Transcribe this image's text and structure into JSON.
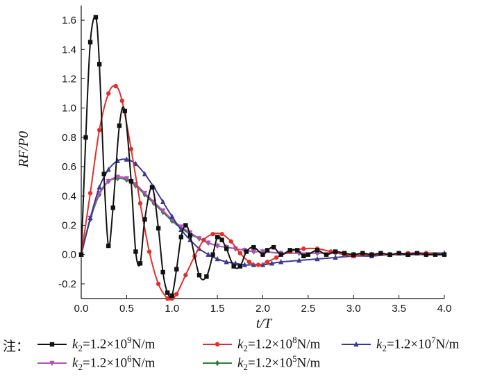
{
  "chart_data": {
    "type": "line",
    "xlabel": "t/T",
    "ylabel": "RF/P0",
    "xlim": [
      0,
      4.0
    ],
    "ylim": [
      -0.3,
      1.7
    ],
    "x_ticks": [
      "0.0",
      "0.5",
      "1.0",
      "1.5",
      "2.0",
      "2.5",
      "3.0",
      "3.5",
      "4.0"
    ],
    "y_ticks": [
      "-0.2",
      "0.0",
      "0.2",
      "0.4",
      "0.6",
      "0.8",
      "1.0",
      "1.2",
      "1.4",
      "1.6"
    ],
    "legend_note": "注：",
    "legend_placement": "bottom",
    "series": [
      {
        "name": "k2=1.2×10⁹N/m",
        "label_parts": {
          "k": "k",
          "sub": "2",
          "pre": "=1.2×10",
          "sup": "9",
          "post": "N/m"
        },
        "color": "#111111",
        "marker": "square",
        "x": [
          0,
          0.05,
          0.1,
          0.16,
          0.2,
          0.25,
          0.3,
          0.35,
          0.42,
          0.48,
          0.55,
          0.6,
          0.65,
          0.7,
          0.78,
          0.85,
          0.9,
          0.95,
          1.0,
          1.05,
          1.1,
          1.15,
          1.2,
          1.3,
          1.38,
          1.45,
          1.5,
          1.55,
          1.6,
          1.68,
          1.75,
          1.82,
          1.9,
          2.0,
          2.05,
          2.12,
          2.2,
          2.3,
          2.38,
          2.45,
          2.5,
          2.6,
          2.7,
          2.8,
          2.9,
          3.0,
          3.1,
          3.2,
          3.3,
          3.4,
          3.5,
          3.6,
          3.7,
          3.8,
          3.9,
          4.0
        ],
        "y": [
          0.0,
          0.8,
          1.45,
          1.62,
          1.3,
          0.55,
          0.06,
          0.32,
          0.88,
          0.98,
          0.5,
          0.02,
          -0.06,
          0.24,
          0.46,
          0.18,
          -0.12,
          -0.26,
          -0.28,
          -0.1,
          0.12,
          0.2,
          0.13,
          -0.14,
          -0.15,
          0.0,
          0.12,
          0.1,
          0.04,
          -0.08,
          -0.08,
          0.02,
          0.05,
          0.0,
          0.03,
          0.05,
          0.0,
          0.03,
          0.03,
          -0.01,
          0.0,
          0.03,
          0.0,
          0.02,
          0.01,
          0.0,
          0.01,
          0.0,
          0.01,
          0.0,
          0.01,
          0.0,
          0.01,
          0.0,
          0.0,
          0.0
        ]
      },
      {
        "name": "k2=1.2×10⁸N/m",
        "label_parts": {
          "k": "k",
          "sub": "2",
          "pre": "=1.2×10",
          "sup": "8",
          "post": "N/m"
        },
        "color": "#e0302b",
        "marker": "circle",
        "x": [
          0,
          0.1,
          0.2,
          0.3,
          0.38,
          0.45,
          0.55,
          0.65,
          0.75,
          0.85,
          0.95,
          1.0,
          1.05,
          1.15,
          1.25,
          1.35,
          1.45,
          1.55,
          1.65,
          1.75,
          1.85,
          1.95,
          2.05,
          2.15,
          2.3,
          2.45,
          2.6,
          2.75,
          2.9,
          3.0,
          3.2,
          3.4,
          3.6,
          3.8,
          4.0
        ],
        "y": [
          0.0,
          0.42,
          0.85,
          1.1,
          1.15,
          1.05,
          0.72,
          0.35,
          0.02,
          -0.2,
          -0.3,
          -0.3,
          -0.27,
          -0.14,
          -0.01,
          0.1,
          0.14,
          0.14,
          0.09,
          0.01,
          -0.05,
          -0.07,
          -0.05,
          -0.02,
          0.02,
          0.04,
          0.04,
          0.02,
          0.0,
          -0.01,
          0.0,
          0.0,
          0.01,
          0.01,
          0.0
        ]
      },
      {
        "name": "k2=1.2×10⁷N/m",
        "label_parts": {
          "k": "k",
          "sub": "2",
          "pre": "=1.2×10",
          "sup": "7",
          "post": "N/m"
        },
        "color": "#3b3a8f",
        "marker": "triangle-up",
        "x": [
          0,
          0.1,
          0.2,
          0.3,
          0.4,
          0.5,
          0.6,
          0.7,
          0.8,
          0.9,
          1.0,
          1.1,
          1.2,
          1.3,
          1.4,
          1.5,
          1.6,
          1.7,
          1.8,
          1.9,
          2.0,
          2.1,
          2.2,
          2.4,
          2.6,
          2.8,
          3.0,
          3.2,
          3.4,
          3.6,
          3.8,
          4.0
        ],
        "y": [
          0.0,
          0.25,
          0.46,
          0.58,
          0.64,
          0.65,
          0.62,
          0.55,
          0.46,
          0.36,
          0.26,
          0.17,
          0.1,
          0.04,
          0.0,
          -0.03,
          -0.05,
          -0.06,
          -0.07,
          -0.07,
          -0.07,
          -0.06,
          -0.05,
          -0.04,
          -0.03,
          -0.02,
          -0.01,
          -0.01,
          0.0,
          0.0,
          0.01,
          0.01
        ]
      },
      {
        "name": "k2=1.2×10⁶N/m",
        "label_parts": {
          "k": "k",
          "sub": "2",
          "pre": "=1.2×10",
          "sup": "6",
          "post": "N/m"
        },
        "color": "#b052b8",
        "marker": "triangle-down",
        "x": [
          0,
          0.1,
          0.2,
          0.3,
          0.4,
          0.5,
          0.6,
          0.7,
          0.8,
          0.9,
          1.0,
          1.1,
          1.2,
          1.3,
          1.4,
          1.5,
          1.6,
          1.7,
          1.8,
          1.9,
          2.0,
          2.2,
          2.4,
          2.6,
          2.8,
          3.0,
          3.2,
          3.4,
          3.6,
          3.8,
          4.0
        ],
        "y": [
          0.0,
          0.25,
          0.42,
          0.5,
          0.53,
          0.52,
          0.48,
          0.42,
          0.36,
          0.3,
          0.24,
          0.19,
          0.15,
          0.11,
          0.08,
          0.06,
          0.05,
          0.04,
          0.03,
          0.02,
          0.02,
          0.01,
          0.01,
          0.01,
          0.01,
          0.0,
          0.0,
          0.0,
          0.0,
          0.0,
          0.0
        ]
      },
      {
        "name": "k2=1.2×10⁵N/m",
        "label_parts": {
          "k": "k",
          "sub": "2",
          "pre": "=1.2×10",
          "sup": "5",
          "post": "N/m"
        },
        "color": "#2e7d3e",
        "marker": "diamond",
        "x": [
          0,
          0.1,
          0.2,
          0.3,
          0.4,
          0.5,
          0.6,
          0.7,
          0.8,
          0.9,
          1.0,
          1.1,
          1.2,
          1.3,
          1.4,
          1.5,
          1.6,
          1.7,
          1.8,
          1.9,
          2.0,
          2.2,
          2.4,
          2.6,
          2.8,
          3.0,
          3.2,
          3.4,
          3.6,
          3.8,
          4.0
        ],
        "y": [
          0.0,
          0.24,
          0.41,
          0.5,
          0.52,
          0.51,
          0.47,
          0.41,
          0.35,
          0.29,
          0.23,
          0.18,
          0.14,
          0.11,
          0.08,
          0.06,
          0.05,
          0.04,
          0.03,
          0.02,
          0.02,
          0.01,
          0.01,
          0.01,
          0.01,
          0.0,
          0.0,
          0.0,
          0.0,
          0.0,
          0.0
        ]
      }
    ]
  }
}
